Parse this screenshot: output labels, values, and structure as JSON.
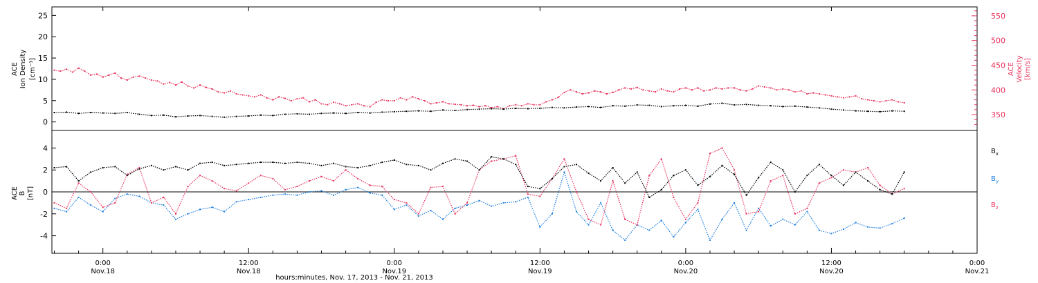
{
  "colors": {
    "axis": "#000000",
    "density": "#000000",
    "velocity": "#e8305a",
    "bx": "#000000",
    "by": "#1e7fe0",
    "bz": "#e8305a"
  },
  "chart_data": [
    {
      "type": "scatter",
      "panel": "top",
      "xlabel": "hours:minutes, Nov. 17, 2013 - Nov. 21, 2013",
      "x_units": "hours since 2013-11-17 00:00",
      "xlim": [
        19.8,
        96
      ],
      "x_ticks": [
        {
          "x": 24,
          "time": "0:00",
          "date": "Nov.18"
        },
        {
          "x": 36,
          "time": "12:00",
          "date": "Nov.18"
        },
        {
          "x": 48,
          "time": "0:00",
          "date": "Nov.19"
        },
        {
          "x": 60,
          "time": "12:00",
          "date": "Nov.19"
        },
        {
          "x": 72,
          "time": "0:00",
          "date": "Nov.20"
        },
        {
          "x": 84,
          "time": "12:00",
          "date": "Nov.20"
        },
        {
          "x": 96,
          "time": "0:00",
          "date": "Nov.21"
        }
      ],
      "left_axis": {
        "label_lines": [
          "ACE",
          "Ion Density",
          "[cm⁻³]"
        ],
        "ylim": [
          -2,
          27
        ],
        "ticks": [
          0,
          5,
          10,
          15,
          20,
          25
        ]
      },
      "right_axis": {
        "label_lines": [
          "ACE",
          "Velocity",
          "[km/s]"
        ],
        "ylim": [
          318,
          568
        ],
        "ticks": [
          350,
          400,
          450,
          500,
          550
        ]
      },
      "series": [
        {
          "axis": "left",
          "x": [
            20.0,
            21.0,
            22.0,
            23.0,
            24.0,
            25.0,
            26.0,
            27.0,
            28.0,
            29.0,
            30.0,
            31.0,
            32.0,
            33.0,
            34.0,
            35.0,
            36.0,
            37.0,
            38.0,
            39.0,
            40.0,
            41.0,
            42.0,
            43.0,
            44.0,
            45.0,
            46.0,
            47.0,
            48.0,
            49.0,
            50.0,
            51.0,
            52.0,
            53.0,
            54.0,
            55.0,
            56.0,
            57.0,
            58.0,
            59.0,
            60.0,
            61.0,
            62.0,
            63.0,
            64.0,
            65.0,
            66.0,
            67.0,
            68.0,
            69.0,
            70.0,
            71.0,
            72.0,
            73.0,
            74.0,
            75.0,
            76.0,
            77.0,
            78.0,
            79.0,
            80.0,
            81.0,
            82.0,
            83.0,
            84.0,
            85.0,
            86.0,
            87.0,
            88.0,
            89.0,
            90.0
          ],
          "y": [
            2.2,
            2.3,
            2.0,
            2.2,
            2.1,
            2.0,
            2.2,
            1.8,
            1.5,
            1.6,
            1.2,
            1.4,
            1.5,
            1.3,
            1.1,
            1.3,
            1.4,
            1.6,
            1.5,
            1.8,
            1.9,
            1.8,
            2.0,
            2.1,
            2.0,
            2.2,
            2.1,
            2.3,
            2.4,
            2.5,
            2.6,
            2.5,
            2.8,
            2.7,
            2.9,
            3.0,
            3.1,
            3.0,
            3.2,
            3.1,
            3.2,
            3.4,
            3.3,
            3.5,
            3.6,
            3.4,
            3.8,
            3.7,
            4.0,
            3.9,
            3.6,
            3.8,
            3.9,
            3.7,
            4.2,
            4.4,
            4.0,
            4.1,
            3.9,
            3.8,
            3.6,
            3.7,
            3.5,
            3.3,
            3.0,
            2.8,
            2.6,
            2.5,
            2.4,
            2.6,
            2.5
          ]
        },
        {
          "axis": "right",
          "x": [
            20.0,
            20.5,
            21.0,
            21.5,
            22.0,
            22.5,
            23.0,
            23.5,
            24.0,
            24.5,
            25.0,
            25.5,
            26.0,
            26.5,
            27.0,
            27.5,
            28.0,
            28.5,
            29.0,
            29.5,
            30.0,
            30.5,
            31.0,
            31.5,
            32.0,
            32.5,
            33.0,
            33.5,
            34.0,
            34.5,
            35.0,
            35.5,
            36.0,
            36.5,
            37.0,
            37.5,
            38.0,
            38.5,
            39.0,
            39.5,
            40.0,
            40.5,
            41.0,
            41.5,
            42.0,
            42.5,
            43.0,
            43.5,
            44.0,
            44.5,
            45.0,
            45.5,
            46.0,
            46.5,
            47.0,
            47.5,
            48.0,
            48.5,
            49.0,
            49.5,
            50.0,
            50.5,
            51.0,
            51.5,
            52.0,
            52.5,
            53.0,
            53.5,
            54.0,
            54.5,
            55.0,
            55.5,
            56.0,
            56.5,
            57.0,
            57.5,
            58.0,
            58.5,
            59.0,
            59.5,
            60.0,
            60.5,
            61.0,
            61.5,
            62.0,
            62.5,
            63.0,
            63.5,
            64.0,
            64.5,
            65.0,
            65.5,
            66.0,
            66.5,
            67.0,
            67.5,
            68.0,
            68.5,
            69.0,
            69.5,
            70.0,
            70.5,
            71.0,
            71.5,
            72.0,
            72.5,
            73.0,
            73.5,
            74.0,
            74.5,
            75.0,
            75.5,
            76.0,
            76.5,
            77.0,
            77.5,
            78.0,
            78.5,
            79.0,
            79.5,
            80.0,
            80.5,
            81.0,
            81.5,
            82.0,
            82.5,
            83.0,
            83.5,
            84.0,
            84.5,
            85.0,
            85.5,
            86.0,
            86.5,
            87.0,
            87.5,
            88.0,
            88.5,
            89.0,
            89.5,
            90.0
          ],
          "y": [
            440,
            438,
            442,
            436,
            444,
            438,
            430,
            432,
            426,
            430,
            434,
            424,
            420,
            426,
            428,
            424,
            420,
            418,
            412,
            415,
            410,
            416,
            408,
            404,
            410,
            405,
            402,
            396,
            394,
            398,
            392,
            390,
            388,
            386,
            390,
            384,
            380,
            386,
            383,
            378,
            382,
            384,
            376,
            380,
            372,
            370,
            375,
            372,
            368,
            370,
            372,
            368,
            366,
            375,
            380,
            378,
            378,
            384,
            380,
            386,
            382,
            378,
            372,
            374,
            376,
            372,
            371,
            370,
            368,
            369,
            366,
            368,
            364,
            366,
            362,
            368,
            370,
            368,
            372,
            370,
            370,
            376,
            380,
            385,
            395,
            400,
            396,
            392,
            394,
            398,
            396,
            392,
            395,
            400,
            404,
            402,
            405,
            400,
            398,
            396,
            402,
            398,
            396,
            402,
            404,
            400,
            404,
            398,
            400,
            404,
            402,
            404,
            404,
            400,
            398,
            402,
            408,
            406,
            404,
            400,
            402,
            400,
            396,
            398,
            392,
            394,
            392,
            390,
            388,
            386,
            384,
            386,
            388,
            382,
            380,
            378,
            376,
            378,
            380,
            376,
            374
          ]
        }
      ]
    },
    {
      "type": "scatter",
      "panel": "bottom",
      "xlim": [
        19.8,
        96
      ],
      "left_axis": {
        "label_lines": [
          "ACE",
          "B",
          "[nT]"
        ],
        "ylim": [
          -5.6,
          5.6
        ],
        "ticks": [
          -4,
          -2,
          0,
          2,
          4
        ],
        "zero_line": true
      },
      "series": [
        {
          "name": "Bx",
          "x": [
            20.0,
            21.0,
            22.0,
            23.0,
            24.0,
            25.0,
            26.0,
            27.0,
            28.0,
            29.0,
            30.0,
            31.0,
            32.0,
            33.0,
            34.0,
            35.0,
            36.0,
            37.0,
            38.0,
            39.0,
            40.0,
            41.0,
            42.0,
            43.0,
            44.0,
            45.0,
            46.0,
            47.0,
            48.0,
            49.0,
            50.0,
            51.0,
            52.0,
            53.0,
            54.0,
            55.0,
            56.0,
            57.0,
            58.0,
            59.0,
            60.0,
            61.0,
            62.0,
            63.0,
            64.0,
            65.0,
            66.0,
            67.0,
            68.0,
            69.0,
            70.0,
            71.0,
            72.0,
            73.0,
            74.0,
            75.0,
            76.0,
            77.0,
            78.0,
            79.0,
            80.0,
            81.0,
            82.0,
            83.0,
            84.0,
            85.0,
            86.0,
            87.0,
            88.0,
            89.0,
            90.0
          ],
          "y": [
            2.2,
            2.3,
            1.0,
            1.8,
            2.2,
            2.3,
            1.5,
            2.1,
            2.4,
            2.0,
            2.3,
            2.0,
            2.6,
            2.7,
            2.4,
            2.5,
            2.6,
            2.7,
            2.7,
            2.6,
            2.7,
            2.6,
            2.4,
            2.6,
            2.3,
            2.2,
            2.4,
            2.7,
            2.9,
            2.5,
            2.4,
            2.0,
            2.6,
            3.0,
            2.8,
            2.0,
            3.2,
            3.0,
            2.5,
            0.5,
            0.3,
            1.2,
            2.3,
            2.5,
            1.7,
            1.0,
            2.2,
            0.8,
            1.8,
            -0.5,
            0.2,
            1.5,
            2.0,
            0.6,
            1.4,
            2.4,
            1.6,
            -0.3,
            1.3,
            2.7,
            2.0,
            0.0,
            1.5,
            2.5,
            1.5,
            0.6,
            1.8,
            1.0,
            0.2,
            -0.2,
            1.8
          ]
        },
        {
          "name": "By",
          "x": [
            20.0,
            21.0,
            22.0,
            23.0,
            24.0,
            25.0,
            26.0,
            27.0,
            28.0,
            29.0,
            30.0,
            31.0,
            32.0,
            33.0,
            34.0,
            35.0,
            36.0,
            37.0,
            38.0,
            39.0,
            40.0,
            41.0,
            42.0,
            43.0,
            44.0,
            45.0,
            46.0,
            47.0,
            48.0,
            49.0,
            50.0,
            51.0,
            52.0,
            53.0,
            54.0,
            55.0,
            56.0,
            57.0,
            58.0,
            59.0,
            60.0,
            61.0,
            62.0,
            63.0,
            64.0,
            65.0,
            66.0,
            67.0,
            68.0,
            69.0,
            70.0,
            71.0,
            72.0,
            73.0,
            74.0,
            75.0,
            76.0,
            77.0,
            78.0,
            79.0,
            80.0,
            81.0,
            82.0,
            83.0,
            84.0,
            85.0,
            86.0,
            87.0,
            88.0,
            89.0,
            90.0
          ],
          "y": [
            -1.5,
            -1.8,
            -0.5,
            -1.2,
            -1.8,
            -0.6,
            -0.2,
            -0.4,
            -1.0,
            -1.2,
            -2.5,
            -2.0,
            -1.6,
            -1.4,
            -1.8,
            -0.9,
            -0.7,
            -0.5,
            -0.3,
            -0.2,
            -0.3,
            0.0,
            0.1,
            -0.3,
            0.2,
            0.4,
            -0.1,
            -0.3,
            -1.6,
            -1.2,
            -2.2,
            -1.7,
            -2.5,
            -1.5,
            -1.2,
            -0.8,
            -1.3,
            -1.0,
            -0.9,
            -0.5,
            -3.2,
            -2.0,
            1.8,
            -1.8,
            -3.0,
            -1.0,
            -3.5,
            -4.4,
            -3.0,
            -3.5,
            -2.6,
            -4.1,
            -2.8,
            -1.6,
            -4.4,
            -2.5,
            -1.0,
            -3.5,
            -1.5,
            -3.1,
            -2.5,
            -3.0,
            -1.8,
            -3.5,
            -3.8,
            -3.4,
            -2.8,
            -3.2,
            -3.3,
            -2.9,
            -2.4
          ]
        },
        {
          "name": "Bz",
          "x": [
            20.0,
            21.0,
            22.0,
            23.0,
            24.0,
            25.0,
            26.0,
            27.0,
            28.0,
            29.0,
            30.0,
            31.0,
            32.0,
            33.0,
            34.0,
            35.0,
            36.0,
            37.0,
            38.0,
            39.0,
            40.0,
            41.0,
            42.0,
            43.0,
            44.0,
            45.0,
            46.0,
            47.0,
            48.0,
            49.0,
            50.0,
            51.0,
            52.0,
            53.0,
            54.0,
            55.0,
            56.0,
            57.0,
            58.0,
            59.0,
            60.0,
            61.0,
            62.0,
            63.0,
            64.0,
            65.0,
            66.0,
            67.0,
            68.0,
            69.0,
            70.0,
            71.0,
            72.0,
            73.0,
            74.0,
            75.0,
            76.0,
            77.0,
            78.0,
            79.0,
            80.0,
            81.0,
            82.0,
            83.0,
            84.0,
            85.0,
            86.0,
            87.0,
            88.0,
            89.0,
            90.0
          ],
          "y": [
            -1.0,
            -1.5,
            0.8,
            0.0,
            -1.4,
            -1.0,
            1.6,
            2.2,
            -1.0,
            -0.5,
            -2.0,
            0.5,
            1.5,
            1.0,
            0.3,
            0.1,
            0.8,
            1.5,
            1.2,
            0.2,
            0.5,
            1.0,
            1.4,
            1.0,
            2.0,
            1.2,
            0.6,
            0.5,
            -0.7,
            -1.0,
            -2.0,
            0.4,
            0.5,
            -2.0,
            -1.0,
            2.0,
            2.8,
            3.0,
            3.3,
            -0.2,
            -0.4,
            1.2,
            3.0,
            0.0,
            -2.5,
            -3.0,
            1.0,
            -2.5,
            -3.0,
            1.5,
            3.0,
            -0.5,
            -2.5,
            -1.0,
            3.5,
            4.0,
            2.0,
            -2.0,
            -1.8,
            1.0,
            1.5,
            -2.0,
            -1.5,
            0.8,
            1.3,
            2.0,
            1.8,
            2.2,
            0.6,
            -0.2,
            0.3
          ]
        }
      ],
      "legend": [
        "B",
        "B",
        "B"
      ],
      "legend_subscripts": [
        "x",
        "y",
        "z"
      ],
      "legend_placement": "right"
    }
  ],
  "unit_subscripts": {
    "top_right": "⁻³"
  }
}
